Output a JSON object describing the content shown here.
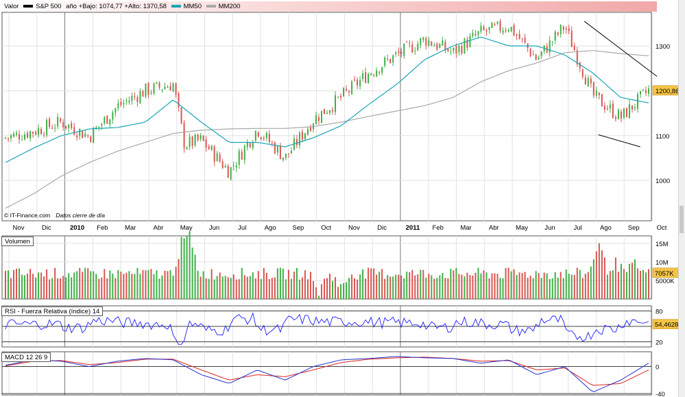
{
  "header": {
    "valor_label": "Valor",
    "series_label": "S&P 500",
    "range_label": "año +Bajo: 1074,77 +Alto: 1370,58",
    "mm50_label": "MM50",
    "mm200_label": "MM200"
  },
  "colors": {
    "up": "#3cb043",
    "down": "#d9534f",
    "mm50": "#1aa5b5",
    "mm200": "#a8a8a8",
    "rsi": "#1a1aff",
    "macd": "#2233cc",
    "signal": "#dd2222",
    "trend": "#000000",
    "price_tag": "#f6c445"
  },
  "footer": {
    "source": "© IT-Finance.com",
    "note": "Datos cierre de día"
  },
  "panels": {
    "volume_label": "Volumen",
    "rsi_label": "RSI - Fuerza Relativa (índice) 14",
    "macd_label": "MACD 12 26 9"
  },
  "chart_data": [
    {
      "type": "candlestick",
      "title": "S&P 500",
      "x_labels": [
        "Nov",
        "Dic",
        "2010",
        "Feb",
        "Mar",
        "Abr",
        "May",
        "Jun",
        "Jul",
        "Ago",
        "Sep",
        "Oct",
        "Nov",
        "Dic",
        "2011",
        "Feb",
        "Mar",
        "Abr",
        "May",
        "Jun",
        "Jul",
        "Ago",
        "Sep",
        "Oct"
      ],
      "ylim": [
        910,
        1375
      ],
      "y_ticks": [
        1000,
        1100,
        1200,
        1300
      ],
      "y_tick_labels": [
        "1000",
        "1100",
        "1200",
        "1300"
      ],
      "last_value_label": "1200,86",
      "last_value": 1200.86,
      "close_path": [
        [
          0,
          1095
        ],
        [
          1,
          1110
        ],
        [
          2,
          1130
        ],
        [
          3,
          1098
        ],
        [
          4,
          1165
        ],
        [
          5,
          1200
        ],
        [
          6,
          1215
        ],
        [
          6.4,
          1080
        ],
        [
          7,
          1090
        ],
        [
          8,
          1020
        ],
        [
          9,
          1115
        ],
        [
          10,
          1050
        ],
        [
          11,
          1135
        ],
        [
          12,
          1185
        ],
        [
          13,
          1240
        ],
        [
          14,
          1280
        ],
        [
          15,
          1315
        ],
        [
          16,
          1285
        ],
        [
          17,
          1330
        ],
        [
          18,
          1345
        ],
        [
          19,
          1270
        ],
        [
          20,
          1345
        ],
        [
          21,
          1190
        ],
        [
          22,
          1140
        ],
        [
          23,
          1200.86
        ]
      ],
      "mm50_path": [
        [
          0,
          1040
        ],
        [
          1,
          1072
        ],
        [
          2,
          1100
        ],
        [
          3,
          1115
        ],
        [
          4,
          1118
        ],
        [
          5,
          1130
        ],
        [
          6,
          1180
        ],
        [
          7,
          1130
        ],
        [
          8,
          1085
        ],
        [
          9,
          1085
        ],
        [
          10,
          1075
        ],
        [
          11,
          1095
        ],
        [
          12,
          1122
        ],
        [
          13,
          1170
        ],
        [
          14,
          1215
        ],
        [
          15,
          1270
        ],
        [
          16,
          1300
        ],
        [
          17,
          1320
        ],
        [
          18,
          1300
        ],
        [
          19,
          1300
        ],
        [
          20,
          1280
        ],
        [
          21,
          1240
        ],
        [
          22,
          1185
        ],
        [
          23,
          1173
        ]
      ],
      "mm200_path": [
        [
          0,
          938
        ],
        [
          1,
          970
        ],
        [
          2,
          1010
        ],
        [
          3,
          1040
        ],
        [
          4,
          1065
        ],
        [
          5,
          1085
        ],
        [
          6,
          1105
        ],
        [
          7,
          1112
        ],
        [
          8,
          1115
        ],
        [
          9,
          1116
        ],
        [
          10,
          1116
        ],
        [
          11,
          1120
        ],
        [
          12,
          1130
        ],
        [
          13,
          1143
        ],
        [
          14,
          1155
        ],
        [
          15,
          1167
        ],
        [
          16,
          1185
        ],
        [
          17,
          1220
        ],
        [
          18,
          1245
        ],
        [
          19,
          1262
        ],
        [
          20,
          1285
        ],
        [
          21,
          1290
        ],
        [
          22,
          1283
        ],
        [
          23,
          1278
        ]
      ],
      "trendlines": [
        {
          "from": [
            20.7,
            1355
          ],
          "to": [
            23.3,
            1232
          ]
        },
        {
          "from": [
            21.2,
            1102
          ],
          "to": [
            22.7,
            1075
          ]
        }
      ]
    },
    {
      "type": "bar",
      "title": "Volumen",
      "ylim": [
        0,
        17000000
      ],
      "y_tick_labels": [
        "15M",
        "10M",
        "5000K"
      ],
      "y_ticks": [
        15000000,
        10000000,
        5000000
      ],
      "last_value_label": "7057K",
      "base_level": 6500000,
      "spikes": [
        [
          6.3,
          14000000
        ],
        [
          6.6,
          15500000
        ],
        [
          11.2,
          1500000
        ],
        [
          12.0,
          2500000
        ],
        [
          21.2,
          15000000
        ],
        [
          21.8,
          9500000
        ],
        [
          22.5,
          9000000
        ]
      ]
    },
    {
      "type": "line",
      "title": "RSI - Fuerza Relativa (índice) 14",
      "ylim": [
        10,
        90
      ],
      "y_ticks": [
        80,
        50,
        20
      ],
      "y_tick_labels": [
        "80",
        "",
        "20"
      ],
      "last_value_label": "54,4628",
      "last_value": 54.4628
    },
    {
      "type": "line",
      "title": "MACD 12 26 9",
      "ylim": [
        -42,
        22
      ],
      "y_ticks": [
        0,
        -40
      ],
      "y_tick_labels": [
        "0",
        "-40"
      ],
      "macd_path": [
        [
          0,
          2
        ],
        [
          1,
          10
        ],
        [
          2,
          8
        ],
        [
          3,
          0
        ],
        [
          4,
          8
        ],
        [
          5,
          12
        ],
        [
          6,
          10
        ],
        [
          7,
          -12
        ],
        [
          8,
          -25
        ],
        [
          9,
          -5
        ],
        [
          10,
          -20
        ],
        [
          11,
          0
        ],
        [
          12,
          10
        ],
        [
          13,
          12
        ],
        [
          14,
          15
        ],
        [
          15,
          13
        ],
        [
          16,
          12
        ],
        [
          17,
          5
        ],
        [
          18,
          10
        ],
        [
          19,
          -12
        ],
        [
          20,
          0
        ],
        [
          21,
          -38
        ],
        [
          22,
          -20
        ],
        [
          23,
          5
        ]
      ],
      "signal_path": [
        [
          0,
          1
        ],
        [
          1,
          8
        ],
        [
          2,
          9
        ],
        [
          3,
          3
        ],
        [
          4,
          6
        ],
        [
          5,
          11
        ],
        [
          6,
          11
        ],
        [
          7,
          -5
        ],
        [
          8,
          -20
        ],
        [
          9,
          -12
        ],
        [
          10,
          -15
        ],
        [
          11,
          -5
        ],
        [
          12,
          6
        ],
        [
          13,
          11
        ],
        [
          14,
          13
        ],
        [
          15,
          14
        ],
        [
          16,
          12
        ],
        [
          17,
          8
        ],
        [
          18,
          9
        ],
        [
          19,
          -5
        ],
        [
          20,
          -2
        ],
        [
          21,
          -28
        ],
        [
          22,
          -25
        ],
        [
          23,
          -5
        ]
      ]
    }
  ]
}
